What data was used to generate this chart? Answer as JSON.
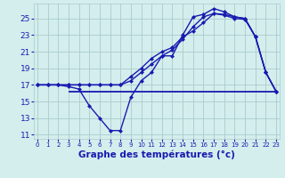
{
  "background_color": "#d4eeed",
  "grid_color": "#a8cccc",
  "line_color": "#1a1ab0",
  "xlabel": "Graphe des températures (°c)",
  "xlabel_fontsize": 7.5,
  "xlim": [
    -0.3,
    23.3
  ],
  "ylim": [
    10.5,
    26.8
  ],
  "yticks": [
    11,
    13,
    15,
    17,
    19,
    21,
    23,
    25
  ],
  "xtick_labels": [
    "0",
    "1",
    "2",
    "3",
    "4",
    "5",
    "6",
    "7",
    "8",
    "9",
    "10",
    "11",
    "12",
    "13",
    "14",
    "15",
    "16",
    "17",
    "18",
    "19",
    "20",
    "21",
    "22",
    "23"
  ],
  "xticks": [
    0,
    1,
    2,
    3,
    4,
    5,
    6,
    7,
    8,
    9,
    10,
    11,
    12,
    13,
    14,
    15,
    16,
    17,
    18,
    19,
    20,
    21,
    22,
    23
  ],
  "line1_x": [
    0,
    1,
    2,
    3,
    4,
    5,
    6,
    7,
    8,
    9,
    10,
    11,
    12,
    13,
    14,
    15,
    16,
    17,
    18,
    19,
    20,
    21,
    22,
    23
  ],
  "line1_y": [
    17,
    17,
    17,
    16.8,
    16.5,
    14.5,
    13,
    11.5,
    11.5,
    15.5,
    17.5,
    18.5,
    20.5,
    20.5,
    23,
    25.2,
    25.5,
    26.2,
    25.8,
    25.2,
    25,
    22.8,
    18.5,
    16.2
  ],
  "line2_x": [
    0,
    1,
    2,
    3,
    4,
    5,
    6,
    7,
    8,
    9,
    10,
    11,
    12,
    13,
    14,
    15,
    16,
    17,
    18,
    19,
    20,
    21,
    22,
    23
  ],
  "line2_y": [
    17,
    17,
    17,
    17,
    17,
    17,
    17,
    17,
    17,
    17.5,
    18.5,
    19.5,
    20.5,
    21.2,
    22.5,
    24.0,
    25.2,
    25.6,
    25.4,
    25.0,
    24.9,
    22.8,
    18.5,
    16.2
  ],
  "line3_x": [
    0,
    1,
    2,
    3,
    4,
    5,
    6,
    7,
    8,
    9,
    10,
    11,
    12,
    13,
    14,
    15,
    16,
    17,
    18,
    19,
    20,
    21,
    22,
    23
  ],
  "line3_y": [
    17,
    17,
    17,
    17,
    17,
    17,
    17,
    17,
    17,
    18,
    19.0,
    20.2,
    21.0,
    21.5,
    22.8,
    23.5,
    24.5,
    25.6,
    25.5,
    25.2,
    25.0,
    22.8,
    18.5,
    16.2
  ],
  "hline_y": 16.2,
  "hline_xstart": 3,
  "hline_xend": 23,
  "marker_size": 2.5,
  "lw": 1.0
}
